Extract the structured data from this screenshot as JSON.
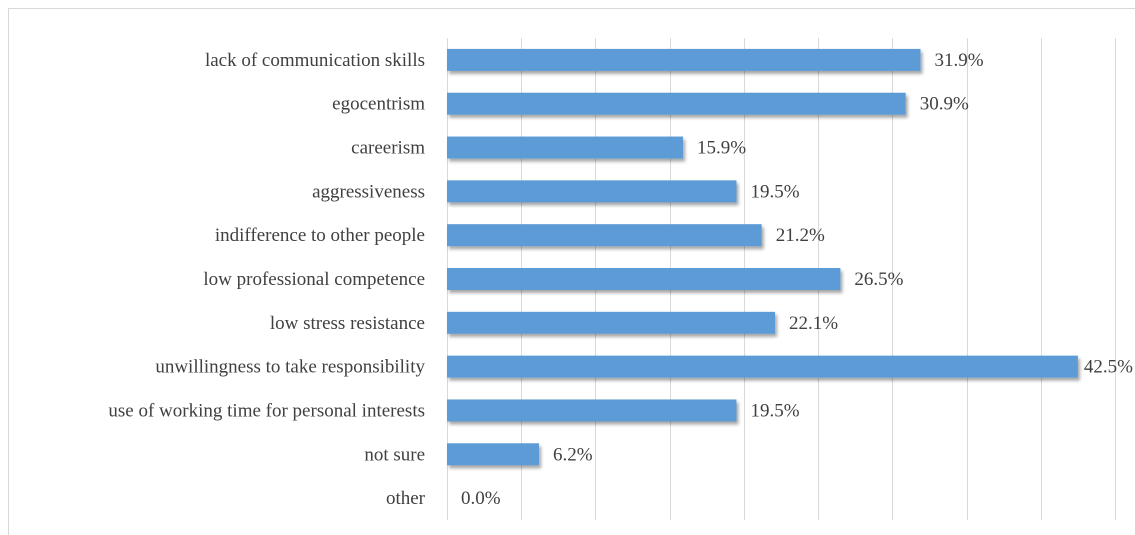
{
  "chart_data": {
    "type": "bar",
    "orientation": "horizontal",
    "title": "",
    "xlabel": "",
    "ylabel": "",
    "xlim": [
      0,
      45
    ],
    "grid": true,
    "legend": "none",
    "bar_color": "#5b9bd5",
    "categories": [
      "lack of communication skills",
      "egocentrism",
      "careerism",
      "aggressiveness",
      "indifference to other people",
      "low professional competence",
      "low stress resistance",
      "unwillingness to take responsibility",
      "use of working time for personal interests",
      "not sure",
      "other"
    ],
    "values": [
      31.9,
      30.9,
      15.9,
      19.5,
      21.2,
      26.5,
      22.1,
      42.5,
      19.5,
      6.2,
      0.0
    ],
    "value_labels": [
      "31.9%",
      "30.9%",
      "15.9%",
      "19.5%",
      "21.2%",
      "26.5%",
      "22.1%",
      "42.5%",
      "19.5%",
      "6.2%",
      "0.0%"
    ]
  }
}
